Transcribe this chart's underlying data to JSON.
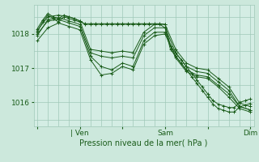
{
  "title": "",
  "xlabel": "Pression niveau de la mer( hPa )",
  "ylabel": "",
  "bg_color": "#cce8dc",
  "plot_bg_color": "#d4ede4",
  "line_color": "#1a5c1a",
  "grid_color": "#a0c8b8",
  "xtick_labels": [
    "",
    "| Ven",
    "",
    "Sam",
    "",
    "Dim"
  ],
  "xtick_positions": [
    0,
    24,
    48,
    72,
    96,
    120
  ],
  "ytick_positions": [
    1016,
    1017,
    1018
  ],
  "ylim": [
    1015.3,
    1018.85
  ],
  "xlim": [
    -2,
    122
  ],
  "lines": [
    {
      "x": [
        0,
        3,
        6,
        9,
        12,
        15,
        18,
        21,
        24,
        27,
        30,
        33,
        36,
        39,
        42,
        45,
        48,
        51,
        54,
        57,
        60,
        63,
        66,
        69,
        72,
        75,
        78,
        81,
        84,
        87,
        90,
        93,
        96,
        99,
        102,
        105,
        108,
        111,
        114,
        117,
        120
      ],
      "y": [
        1018.05,
        1018.35,
        1018.55,
        1018.45,
        1018.35,
        1018.5,
        1018.45,
        1018.4,
        1018.35,
        1018.3,
        1018.3,
        1018.3,
        1018.3,
        1018.3,
        1018.3,
        1018.3,
        1018.3,
        1018.3,
        1018.3,
        1018.3,
        1018.3,
        1018.3,
        1018.3,
        1018.3,
        1018.28,
        1017.65,
        1017.45,
        1017.25,
        1017.05,
        1016.85,
        1016.65,
        1016.45,
        1016.25,
        1016.05,
        1015.95,
        1015.9,
        1015.85,
        1015.85,
        1016.0,
        1016.05,
        1016.1
      ]
    },
    {
      "x": [
        0,
        3,
        6,
        9,
        12,
        15,
        18,
        21,
        24,
        27,
        30,
        33,
        36,
        39,
        42,
        45,
        48,
        51,
        54,
        57,
        60,
        63,
        66,
        69,
        72,
        75,
        78,
        81,
        84,
        87,
        90,
        93,
        96,
        99,
        102,
        105,
        108,
        111,
        114,
        117,
        120
      ],
      "y": [
        1018.15,
        1018.4,
        1018.6,
        1018.5,
        1018.45,
        1018.55,
        1018.5,
        1018.45,
        1018.38,
        1018.28,
        1018.28,
        1018.28,
        1018.28,
        1018.28,
        1018.28,
        1018.28,
        1018.28,
        1018.28,
        1018.28,
        1018.28,
        1018.28,
        1018.28,
        1018.28,
        1018.28,
        1018.18,
        1017.55,
        1017.35,
        1017.15,
        1016.95,
        1016.75,
        1016.55,
        1016.35,
        1016.15,
        1015.95,
        1015.82,
        1015.77,
        1015.72,
        1015.72,
        1015.87,
        1015.92,
        1015.97
      ]
    },
    {
      "x": [
        0,
        6,
        12,
        18,
        24,
        30,
        36,
        42,
        48,
        54,
        60,
        66,
        72,
        78,
        84,
        90,
        96,
        102,
        108,
        114,
        120
      ],
      "y": [
        1018.1,
        1018.5,
        1018.55,
        1018.5,
        1018.38,
        1017.55,
        1017.5,
        1017.45,
        1017.5,
        1017.45,
        1018.05,
        1018.28,
        1018.28,
        1017.55,
        1017.15,
        1017.0,
        1016.95,
        1016.7,
        1016.45,
        1015.98,
        1015.88
      ]
    },
    {
      "x": [
        0,
        6,
        12,
        18,
        24,
        30,
        36,
        42,
        48,
        54,
        60,
        66,
        72,
        78,
        84,
        90,
        96,
        102,
        108,
        114,
        120
      ],
      "y": [
        1017.95,
        1018.42,
        1018.48,
        1018.38,
        1018.28,
        1017.45,
        1017.35,
        1017.3,
        1017.35,
        1017.3,
        1017.95,
        1018.18,
        1018.18,
        1017.45,
        1017.05,
        1016.9,
        1016.85,
        1016.6,
        1016.35,
        1015.88,
        1015.78
      ]
    },
    {
      "x": [
        0,
        6,
        12,
        18,
        24,
        30,
        36,
        42,
        48,
        54,
        60,
        66,
        72,
        78,
        84,
        90,
        96,
        102,
        108,
        114,
        120
      ],
      "y": [
        1017.8,
        1018.18,
        1018.32,
        1018.22,
        1018.12,
        1017.25,
        1016.8,
        1016.85,
        1017.05,
        1016.95,
        1017.7,
        1017.95,
        1018.0,
        1017.3,
        1016.9,
        1016.75,
        1016.7,
        1016.45,
        1016.15,
        1015.82,
        1015.72
      ]
    },
    {
      "x": [
        0,
        6,
        12,
        18,
        24,
        30,
        36,
        42,
        48,
        54,
        60,
        66,
        72,
        78,
        84,
        90,
        96,
        102,
        108,
        114,
        120
      ],
      "y": [
        1018.0,
        1018.38,
        1018.42,
        1018.32,
        1018.22,
        1017.35,
        1017.05,
        1016.95,
        1017.15,
        1017.05,
        1017.8,
        1018.05,
        1018.05,
        1017.35,
        1016.95,
        1016.8,
        1016.75,
        1016.5,
        1016.25,
        1015.88,
        1015.78
      ]
    }
  ]
}
